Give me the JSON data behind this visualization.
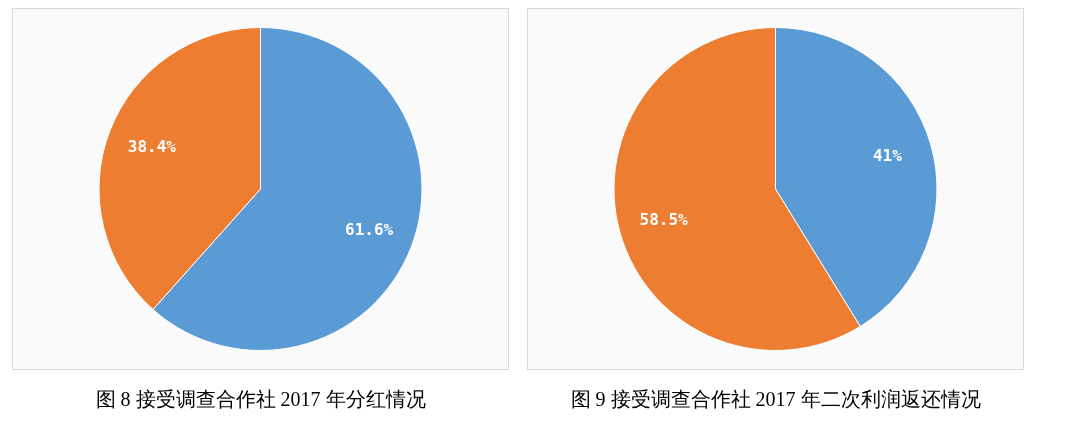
{
  "chart_data": [
    {
      "type": "pie",
      "title": "图 8 接受调查合作社 2017 年分红情况",
      "categories": [
        null,
        null
      ],
      "values": [
        61.6,
        38.4
      ],
      "colors": [
        "#5b9bd5",
        "#ed7d31"
      ],
      "value_labels": [
        "61.6%",
        "38.4%"
      ]
    },
    {
      "type": "pie",
      "title": "图 9 接受调查合作社 2017 年二次利润返还情况",
      "categories": [
        null,
        null
      ],
      "values": [
        41,
        58.5
      ],
      "colors": [
        "#5b9bd5",
        "#ed7d31"
      ],
      "value_labels": [
        "41%",
        "58.5%"
      ]
    }
  ]
}
